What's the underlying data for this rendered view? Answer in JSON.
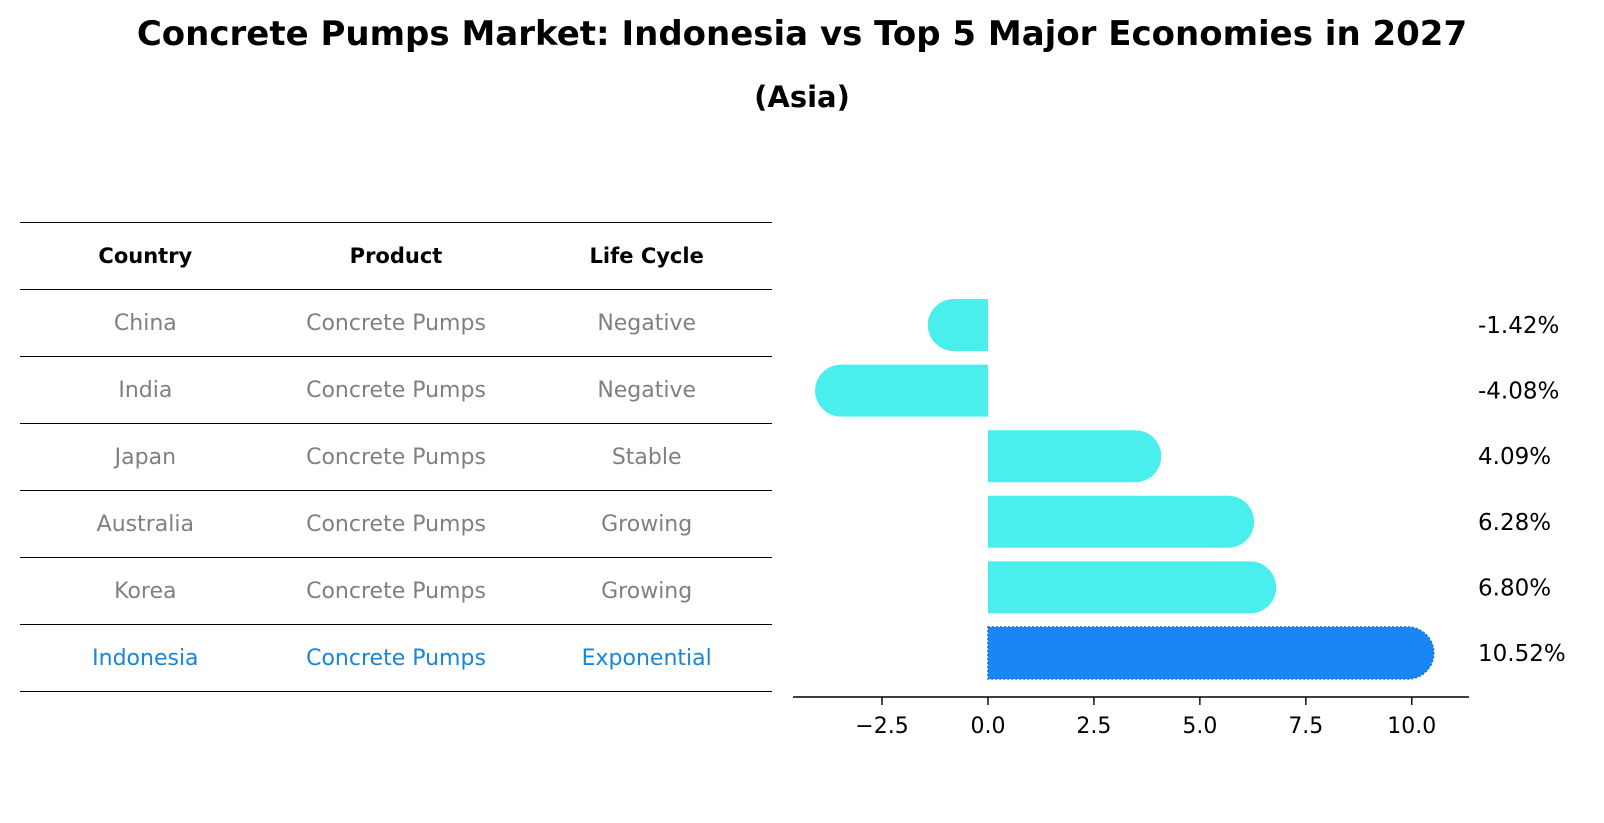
{
  "chart_data": {
    "type": "bar",
    "orientation": "horizontal",
    "title": "Concrete Pumps Market: Indonesia vs Top 5 Major Economies in 2027",
    "subtitle": "(Asia)",
    "categories": [
      "China",
      "India",
      "Japan",
      "Australia",
      "Korea",
      "Indonesia"
    ],
    "values": [
      -1.42,
      -4.08,
      4.09,
      6.28,
      6.8,
      10.52
    ],
    "value_labels": [
      "-1.42%",
      "-4.08%",
      "4.09%",
      "6.28%",
      "6.80%",
      "10.52%"
    ],
    "highlight": "Indonesia",
    "xlim": [
      -4.6,
      11.35
    ],
    "xticks": [
      -2.5,
      0.0,
      2.5,
      5.0,
      7.5,
      10.0
    ],
    "xtick_labels": [
      "−2.5",
      "0.0",
      "2.5",
      "5.0",
      "7.5",
      "10.0"
    ],
    "colors": {
      "bar": "#4aeeed",
      "highlight_bar": "#1a86f5",
      "highlight_text": "#1a86d6",
      "muted_text": "#808080"
    }
  },
  "table": {
    "headers": [
      "Country",
      "Product",
      "Life Cycle"
    ],
    "rows": [
      [
        "China",
        "Concrete Pumps",
        "Negative"
      ],
      [
        "India",
        "Concrete Pumps",
        "Negative"
      ],
      [
        "Japan",
        "Concrete Pumps",
        "Stable"
      ],
      [
        "Australia",
        "Concrete Pumps",
        "Growing"
      ],
      [
        "Korea",
        "Concrete Pumps",
        "Growing"
      ],
      [
        "Indonesia",
        "Concrete Pumps",
        "Exponential"
      ]
    ]
  }
}
